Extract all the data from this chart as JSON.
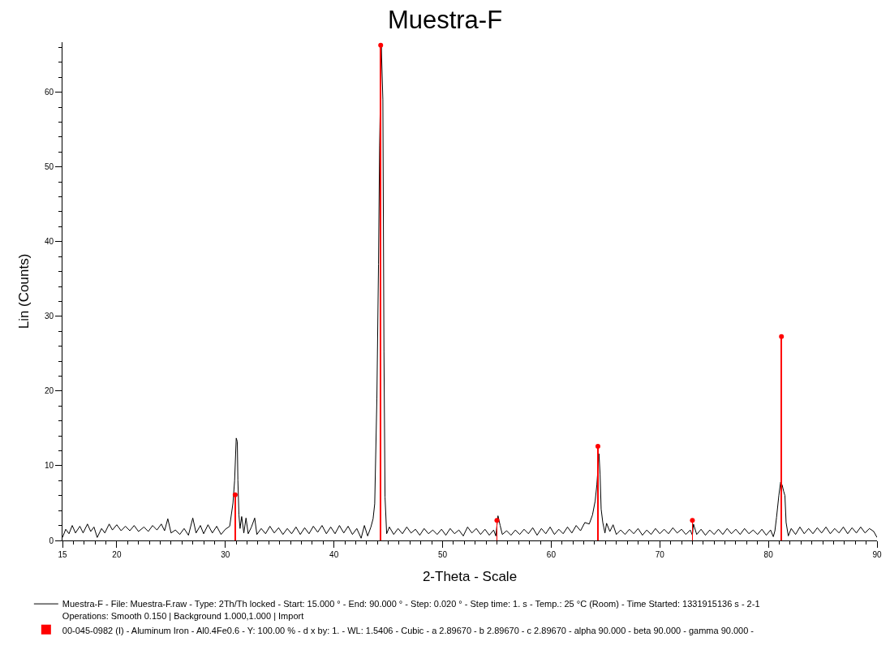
{
  "chart_data": {
    "type": "line",
    "title": "Muestra-F",
    "xlabel": "2-Theta - Scale",
    "ylabel": "Lin (Counts)",
    "xlim": [
      15,
      90
    ],
    "ylim": [
      0,
      66.7
    ],
    "xticks": [
      15,
      {
        "value": 16,
        "label": null
      },
      {
        "value": 17,
        "label": null
      },
      {
        "value": 18,
        "label": null
      },
      {
        "value": 19,
        "label": null
      },
      20,
      {
        "value": 21,
        "label": null
      },
      {
        "value": 22,
        "label": null
      },
      {
        "value": 23,
        "label": null
      },
      {
        "value": 24,
        "label": null
      },
      {
        "value": 25,
        "label": null
      },
      {
        "value": 26,
        "label": null
      },
      {
        "value": 27,
        "label": null
      },
      {
        "value": 28,
        "label": null
      },
      {
        "value": 29,
        "label": null
      },
      30,
      {
        "value": 31,
        "label": null
      },
      {
        "value": 32,
        "label": null
      },
      {
        "value": 33,
        "label": null
      },
      {
        "value": 34,
        "label": null
      },
      {
        "value": 35,
        "label": null
      },
      {
        "value": 36,
        "label": null
      },
      {
        "value": 37,
        "label": null
      },
      {
        "value": 38,
        "label": null
      },
      {
        "value": 39,
        "label": null
      },
      40,
      {
        "value": 41,
        "label": null
      },
      {
        "value": 42,
        "label": null
      },
      {
        "value": 43,
        "label": null
      },
      {
        "value": 44,
        "label": null
      },
      {
        "value": 45,
        "label": null
      },
      {
        "value": 46,
        "label": null
      },
      {
        "value": 47,
        "label": null
      },
      {
        "value": 48,
        "label": null
      },
      {
        "value": 49,
        "label": null
      },
      50,
      {
        "value": 51,
        "label": null
      },
      {
        "value": 52,
        "label": null
      },
      {
        "value": 53,
        "label": null
      },
      {
        "value": 54,
        "label": null
      },
      {
        "value": 55,
        "label": null
      },
      {
        "value": 56,
        "label": null
      },
      {
        "value": 57,
        "label": null
      },
      {
        "value": 58,
        "label": null
      },
      {
        "value": 59,
        "label": null
      },
      60,
      {
        "value": 61,
        "label": null
      },
      {
        "value": 62,
        "label": null
      },
      {
        "value": 63,
        "label": null
      },
      {
        "value": 64,
        "label": null
      },
      {
        "value": 65,
        "label": null
      },
      {
        "value": 66,
        "label": null
      },
      {
        "value": 67,
        "label": null
      },
      {
        "value": 68,
        "label": null
      },
      {
        "value": 69,
        "label": null
      },
      70,
      {
        "value": 71,
        "label": null
      },
      {
        "value": 72,
        "label": null
      },
      {
        "value": 73,
        "label": null
      },
      {
        "value": 74,
        "label": null
      },
      {
        "value": 75,
        "label": null
      },
      {
        "value": 76,
        "label": null
      },
      {
        "value": 77,
        "label": null
      },
      {
        "value": 78,
        "label": null
      },
      {
        "value": 79,
        "label": null
      },
      80,
      {
        "value": 81,
        "label": null
      },
      {
        "value": 82,
        "label": null
      },
      {
        "value": 83,
        "label": null
      },
      {
        "value": 84,
        "label": null
      },
      {
        "value": 85,
        "label": null
      },
      {
        "value": 86,
        "label": null
      },
      {
        "value": 87,
        "label": null
      },
      {
        "value": 88,
        "label": null
      },
      {
        "value": 89,
        "label": null
      },
      90
    ],
    "yticks": [
      0,
      {
        "value": 2,
        "label": null
      },
      {
        "value": 4,
        "label": null
      },
      {
        "value": 6,
        "label": null
      },
      {
        "value": 8,
        "label": null
      },
      10,
      {
        "value": 12,
        "label": null
      },
      {
        "value": 14,
        "label": null
      },
      {
        "value": 16,
        "label": null
      },
      {
        "value": 18,
        "label": null
      },
      20,
      {
        "value": 22,
        "label": null
      },
      {
        "value": 24,
        "label": null
      },
      {
        "value": 26,
        "label": null
      },
      {
        "value": 28,
        "label": null
      },
      30,
      {
        "value": 32,
        "label": null
      },
      {
        "value": 34,
        "label": null
      },
      {
        "value": 36,
        "label": null
      },
      {
        "value": 38,
        "label": null
      },
      40,
      {
        "value": 42,
        "label": null
      },
      {
        "value": 44,
        "label": null
      },
      {
        "value": 46,
        "label": null
      },
      {
        "value": 48,
        "label": null
      },
      50,
      {
        "value": 52,
        "label": null
      },
      {
        "value": 54,
        "label": null
      },
      {
        "value": 56,
        "label": null
      },
      {
        "value": 58,
        "label": null
      },
      60,
      {
        "value": 62,
        "label": null
      },
      {
        "value": 64,
        "label": null
      },
      {
        "value": 66,
        "label": null
      }
    ],
    "legend": "bottom",
    "series": [
      {
        "name": "Muestra-F - File: Muestra-F.raw - Type: 2Th/Th locked - Start: 15.000 ° - End: 90.000 ° - Step: 0.020 ° - Step time: 1. s - Temp.: 25 °C (Room) - Time Started: 1331915136 s - 2-1\nOperations: Smooth 0.150 | Background 1.000,1.000 | Import",
        "color": "#000000",
        "x": [
          15.0,
          15.3,
          15.6,
          15.9,
          16.2,
          16.6,
          16.9,
          17.3,
          17.6,
          17.9,
          18.2,
          18.6,
          18.9,
          19.3,
          19.6,
          20.0,
          20.4,
          20.8,
          21.2,
          21.6,
          22.0,
          22.5,
          22.9,
          23.3,
          23.7,
          24.1,
          24.4,
          24.7,
          25.0,
          25.4,
          25.8,
          26.2,
          26.6,
          27.0,
          27.3,
          27.7,
          28.0,
          28.4,
          28.8,
          29.2,
          29.6,
          30.0,
          30.4,
          30.7,
          30.85,
          31.0,
          31.1,
          31.15,
          31.25,
          31.35,
          31.5,
          31.7,
          31.9,
          32.1,
          32.4,
          32.7,
          32.9,
          33.3,
          33.7,
          34.1,
          34.5,
          34.9,
          35.3,
          35.7,
          36.1,
          36.5,
          36.9,
          37.3,
          37.7,
          38.1,
          38.5,
          38.9,
          39.3,
          39.7,
          40.1,
          40.5,
          40.9,
          41.3,
          41.7,
          42.1,
          42.5,
          42.8,
          43.1,
          43.4,
          43.6,
          43.75,
          43.95,
          44.1,
          44.2,
          44.35,
          44.5,
          44.6,
          44.7,
          44.85,
          45.1,
          45.5,
          45.9,
          46.3,
          46.7,
          47.1,
          47.5,
          47.9,
          48.3,
          48.7,
          49.1,
          49.5,
          49.9,
          50.3,
          50.7,
          51.1,
          51.5,
          51.9,
          52.3,
          52.7,
          53.1,
          53.5,
          53.9,
          54.3,
          54.7,
          54.9,
          55.1,
          55.3,
          55.5,
          55.9,
          56.3,
          56.7,
          57.1,
          57.5,
          57.9,
          58.3,
          58.7,
          59.1,
          59.5,
          59.9,
          60.3,
          60.7,
          61.1,
          61.5,
          61.9,
          62.3,
          62.7,
          63.1,
          63.5,
          63.8,
          64.05,
          64.2,
          64.4,
          64.5,
          64.6,
          64.75,
          64.95,
          65.1,
          65.4,
          65.7,
          66.0,
          66.4,
          66.8,
          67.2,
          67.6,
          68.0,
          68.4,
          68.8,
          69.2,
          69.6,
          70.0,
          70.4,
          70.8,
          71.2,
          71.6,
          72.0,
          72.4,
          72.8,
          73.0,
          73.1,
          73.4,
          73.8,
          74.2,
          74.6,
          75.0,
          75.4,
          75.8,
          76.2,
          76.6,
          77.0,
          77.4,
          77.8,
          78.2,
          78.6,
          79.0,
          79.4,
          79.8,
          80.2,
          80.45,
          80.6,
          80.75,
          80.96,
          81.12,
          81.27,
          81.4,
          81.52,
          81.63,
          81.83,
          82.1,
          82.5,
          82.9,
          83.3,
          83.7,
          84.1,
          84.5,
          84.9,
          85.3,
          85.7,
          86.1,
          86.5,
          86.9,
          87.3,
          87.7,
          88.1,
          88.5,
          88.9,
          89.3,
          89.7,
          90.0
        ],
        "values": [
          0.4,
          1.5,
          0.9,
          2.0,
          1.0,
          1.9,
          1.0,
          2.2,
          1.2,
          1.8,
          0.4,
          1.6,
          1.0,
          2.2,
          1.4,
          2.1,
          1.3,
          1.9,
          1.3,
          2.0,
          1.2,
          1.8,
          1.2,
          2.0,
          1.4,
          2.2,
          1.3,
          2.9,
          1.0,
          1.4,
          0.8,
          1.6,
          0.7,
          3.0,
          1.0,
          2.0,
          0.9,
          2.1,
          1.0,
          1.9,
          0.8,
          1.5,
          1.9,
          5.0,
          8.0,
          13.7,
          13.2,
          8.1,
          3.4,
          1.6,
          3.2,
          1.0,
          3.0,
          0.9,
          1.8,
          3.0,
          0.8,
          1.6,
          0.9,
          1.9,
          1.0,
          1.7,
          0.8,
          1.6,
          0.9,
          1.8,
          0.8,
          1.7,
          0.9,
          1.9,
          1.1,
          2.0,
          0.9,
          1.8,
          0.9,
          2.0,
          1.0,
          1.9,
          0.8,
          1.6,
          0.3,
          2.0,
          0.6,
          1.8,
          2.9,
          4.9,
          19.0,
          37.0,
          52.8,
          66.5,
          59.0,
          25.3,
          5.8,
          0.9,
          1.8,
          0.8,
          1.6,
          0.9,
          1.8,
          1.0,
          1.5,
          0.7,
          1.6,
          0.9,
          1.4,
          0.8,
          1.5,
          0.7,
          1.6,
          0.9,
          1.4,
          0.6,
          1.8,
          1.0,
          1.6,
          0.8,
          1.5,
          0.7,
          1.4,
          0.6,
          3.3,
          2.0,
          0.8,
          1.3,
          0.7,
          1.4,
          0.8,
          1.5,
          0.9,
          1.7,
          0.7,
          1.6,
          0.9,
          1.8,
          0.8,
          1.5,
          0.9,
          1.8,
          1.0,
          2.0,
          1.3,
          2.4,
          2.2,
          3.4,
          5.3,
          7.4,
          11.6,
          8.9,
          4.2,
          2.4,
          1.0,
          2.3,
          1.2,
          2.1,
          0.8,
          1.4,
          0.8,
          1.5,
          0.9,
          1.6,
          0.7,
          1.4,
          0.8,
          1.6,
          0.9,
          1.5,
          0.9,
          1.7,
          1.0,
          1.5,
          0.8,
          1.4,
          0.7,
          2.2,
          0.8,
          1.5,
          0.7,
          1.4,
          0.8,
          1.5,
          0.8,
          1.6,
          0.9,
          1.5,
          0.8,
          1.6,
          0.9,
          1.4,
          0.8,
          1.5,
          0.7,
          1.4,
          0.5,
          1.3,
          3.1,
          6.0,
          7.8,
          7.4,
          6.6,
          6.0,
          2.4,
          0.6,
          1.6,
          0.8,
          1.8,
          0.9,
          1.6,
          0.9,
          1.7,
          1.0,
          1.8,
          0.9,
          1.6,
          1.0,
          1.8,
          0.9,
          1.7,
          1.0,
          1.8,
          1.0,
          1.6,
          1.2,
          0.4
        ]
      },
      {
        "type": "lollipop",
        "name": "00-045-0982 (I) - Aluminum Iron - Al0.4Fe0.6 - Y: 100.00 % - d x by: 1. - WL: 1.5406 - Cubic - a 2.89670 - b 2.89670 - c 2.89670 - alpha 90.000 - beta 90.000 - gamma 90.000 -",
        "color": "#ff0000",
        "marker": "circle",
        "x": [
          30.9,
          44.3,
          55.0,
          64.3,
          73.0,
          81.2
        ],
        "values": [
          6.1,
          66.3,
          2.7,
          12.6,
          2.7,
          27.3
        ]
      }
    ]
  }
}
